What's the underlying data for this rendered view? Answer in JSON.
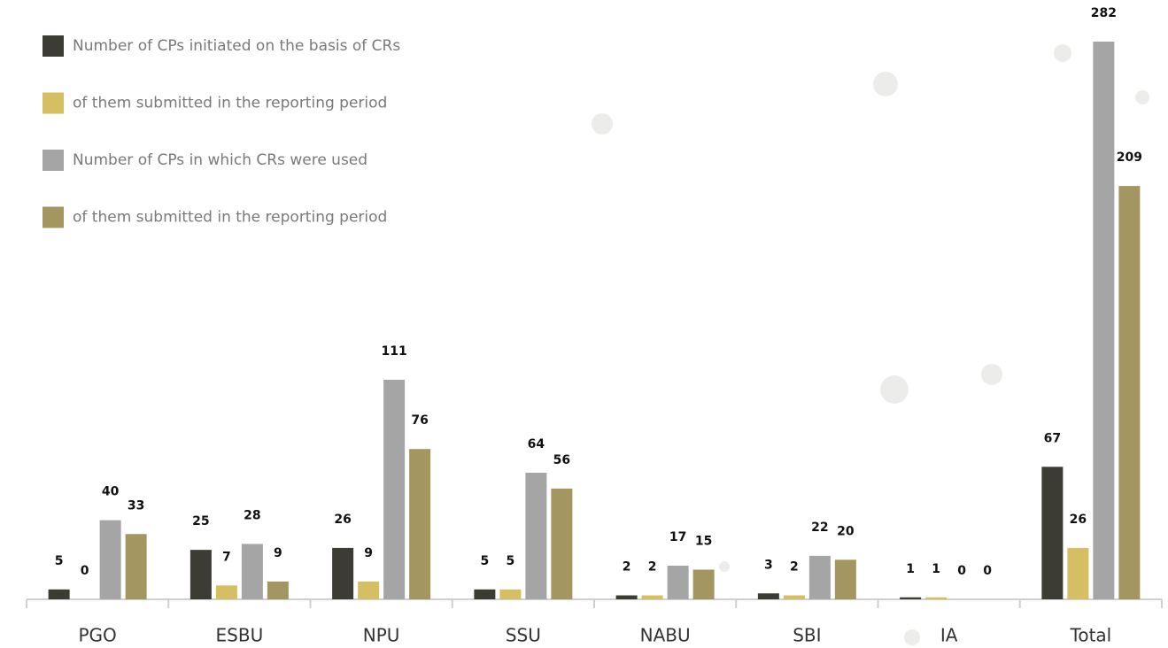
{
  "chart_data": {
    "type": "bar",
    "categories": [
      "PGO",
      "ESBU",
      "NPU",
      "SSU",
      "NABU",
      "SBI",
      "IA",
      "Total"
    ],
    "series": [
      {
        "name": "Number of CPs initiated on the basis of CRs",
        "color": "#3c3c35",
        "values": [
          5,
          25,
          26,
          5,
          2,
          3,
          1,
          67
        ]
      },
      {
        "name": "of them submitted in the reporting period",
        "color": "#d6bf62",
        "values": [
          0,
          7,
          9,
          5,
          2,
          2,
          1,
          26
        ]
      },
      {
        "name": "Number of CPs in which CRs were used",
        "color": "#a5a5a5",
        "values": [
          40,
          28,
          111,
          64,
          17,
          22,
          0,
          282
        ]
      },
      {
        "name": "of them submitted in the reporting period",
        "color": "#a39660",
        "values": [
          33,
          9,
          76,
          56,
          15,
          20,
          0,
          209
        ]
      }
    ],
    "legend": "top-left"
  }
}
